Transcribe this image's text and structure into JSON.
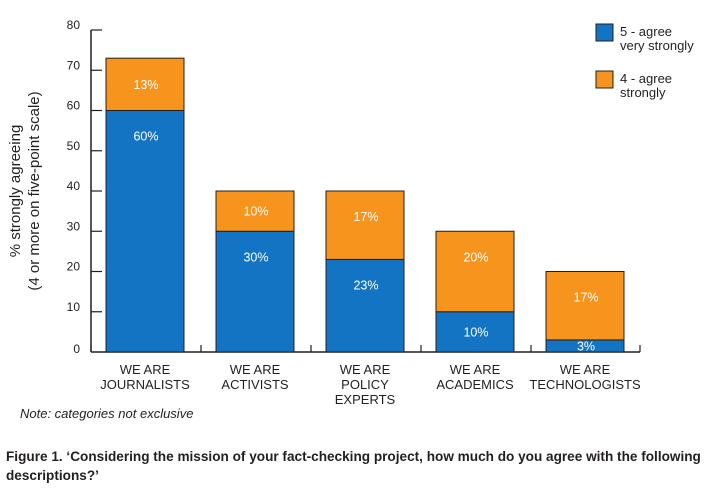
{
  "chart_data": {
    "type": "bar",
    "stacked": true,
    "categories": [
      [
        "WE ARE",
        "JOURNALISTS"
      ],
      [
        "WE ARE",
        "ACTIVISTS"
      ],
      [
        "WE ARE",
        "POLICY",
        "EXPERTS"
      ],
      [
        "WE ARE",
        "ACADEMICS"
      ],
      [
        "WE ARE",
        "TECHNOLOGISTS"
      ]
    ],
    "series": [
      {
        "name": "5 - agree very strongly",
        "legend_lines": [
          "5 - agree",
          "very strongly"
        ],
        "color": "#1474c4",
        "values": [
          60,
          30,
          23,
          10,
          3
        ],
        "labels": [
          "60%",
          "30%",
          "23%",
          "10%",
          "3%"
        ]
      },
      {
        "name": "4 - agree strongly",
        "legend_lines": [
          "4 - agree",
          "strongly"
        ],
        "color": "#f7941d",
        "values": [
          13,
          10,
          17,
          20,
          17
        ],
        "labels": [
          "13%",
          "10%",
          "17%",
          "20%",
          "17%"
        ]
      }
    ],
    "ylabel": [
      "% strongly agreeing",
      "(4 or more on five-point scale)"
    ],
    "ylim": [
      0,
      80
    ],
    "yticks": [
      0,
      10,
      20,
      30,
      40,
      50,
      60,
      70,
      80
    ],
    "legend_position": "top-right",
    "grid": false
  },
  "note": "Note: categories not exclusive",
  "caption": "Figure 1. ‘Considering the mission of your fact-checking project, how much do you agree with the following descriptions?’"
}
